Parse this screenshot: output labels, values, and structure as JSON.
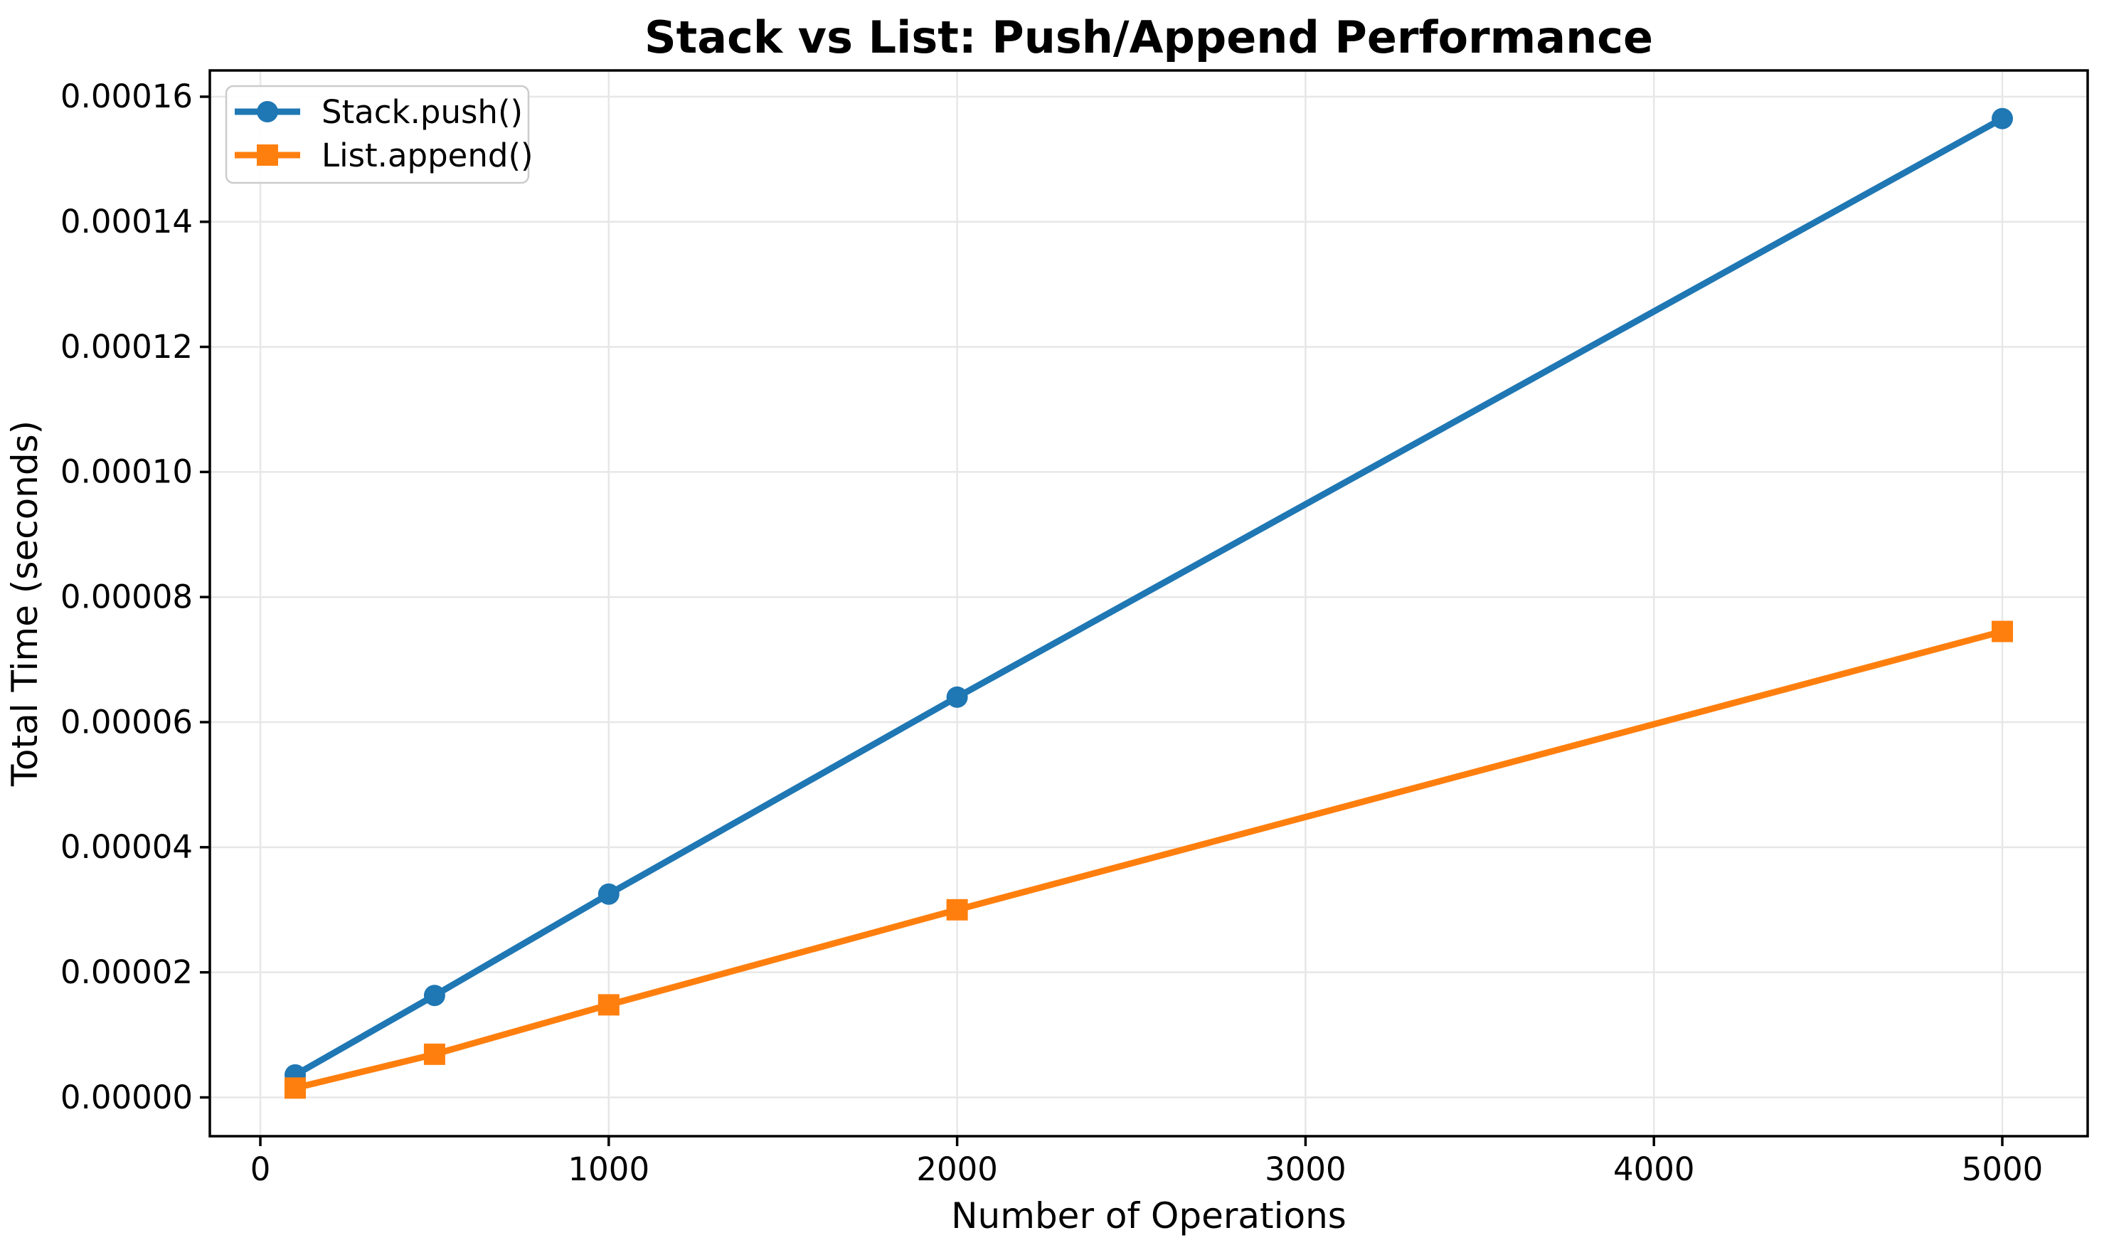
{
  "figure": {
    "background": "#ffffff"
  },
  "colors": {
    "grid": "#e7e7e7",
    "spine": "#000000",
    "tick": "#000000",
    "text": "#000000",
    "legend_border": "#cccccc",
    "legend_background": "#ffffff"
  },
  "chart_data": {
    "type": "line",
    "title": "Stack vs List: Push/Append Performance",
    "xlabel": "Number of Operations",
    "ylabel": "Total Time (seconds)",
    "x": [
      100,
      500,
      1000,
      2000,
      5000
    ],
    "series": [
      {
        "name": "Stack.push()",
        "color": "#1f77b4",
        "marker": "circle",
        "values": [
          3.6e-06,
          1.63e-05,
          3.25e-05,
          6.4e-05,
          0.0001565
        ]
      },
      {
        "name": "List.append()",
        "color": "#ff7f0e",
        "marker": "square",
        "values": [
          1.5e-06,
          6.9e-06,
          1.48e-05,
          3e-05,
          7.45e-05
        ]
      }
    ],
    "xlim": [
      -145,
      5245
    ],
    "ylim": [
      -6.2e-06,
      0.0001642
    ],
    "xticks": [
      0,
      1000,
      2000,
      3000,
      4000,
      5000
    ],
    "xtick_labels": [
      "0",
      "1000",
      "2000",
      "3000",
      "4000",
      "5000"
    ],
    "yticks": [
      0.0,
      2e-05,
      4e-05,
      6e-05,
      8e-05,
      0.0001,
      0.00012,
      0.00014,
      0.00016
    ],
    "ytick_labels": [
      "0.00000",
      "0.00002",
      "0.00004",
      "0.00006",
      "0.00008",
      "0.00010",
      "0.00012",
      "0.00014",
      "0.00016"
    ],
    "grid": true,
    "legend_position": "upper left"
  }
}
